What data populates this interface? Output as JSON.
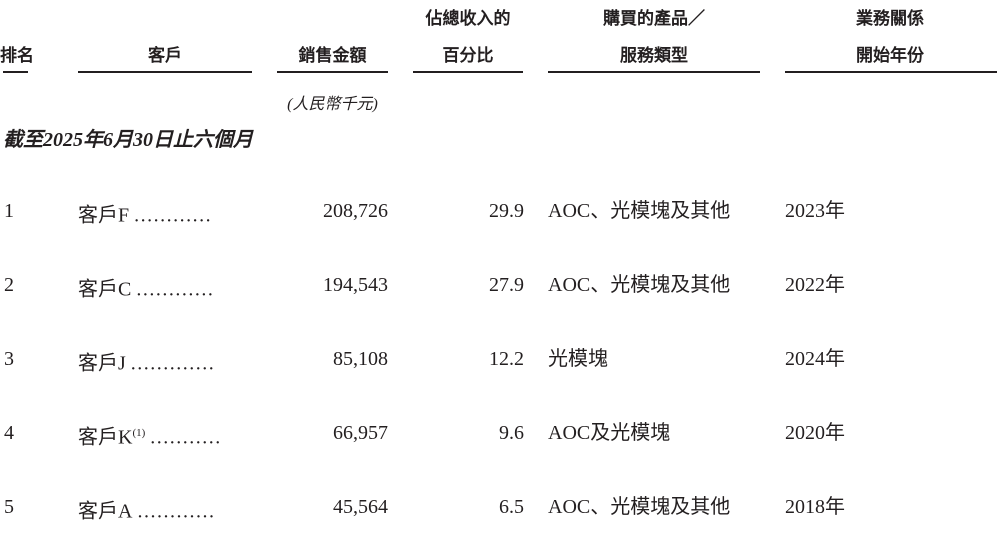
{
  "headers": {
    "rank": "排名",
    "customer": "客戶",
    "sales": "銷售金額",
    "pct_line1": "佔總收入的",
    "pct_line2": "百分比",
    "product_line1": "購買的產品／",
    "product_line2": "服務類型",
    "year_line1": "業務關係",
    "year_line2": "開始年份",
    "sales_unit": "(人民幣千元)"
  },
  "period": "截至2025年6月30日止六個月",
  "rows": [
    {
      "rank": "1",
      "customer": "客戶F",
      "note": "",
      "dots": "............",
      "sales": "208,726",
      "pct": "29.9",
      "product": "AOC、光模塊及其他",
      "year": "2023年"
    },
    {
      "rank": "2",
      "customer": "客戶C",
      "note": "",
      "dots": "............",
      "sales": "194,543",
      "pct": "27.9",
      "product": "AOC、光模塊及其他",
      "year": "2022年"
    },
    {
      "rank": "3",
      "customer": "客戶J",
      "note": "",
      "dots": ".............",
      "sales": "85,108",
      "pct": "12.2",
      "product": "光模塊",
      "year": "2024年"
    },
    {
      "rank": "4",
      "customer": "客戶K",
      "note": "(1)",
      "dots": "...........",
      "sales": "66,957",
      "pct": "9.6",
      "product": "AOC及光模塊",
      "year": "2020年"
    },
    {
      "rank": "5",
      "customer": "客戶A",
      "note": "",
      "dots": "............",
      "sales": "45,564",
      "pct": "6.5",
      "product": "AOC、光模塊及其他",
      "year": "2018年"
    }
  ]
}
